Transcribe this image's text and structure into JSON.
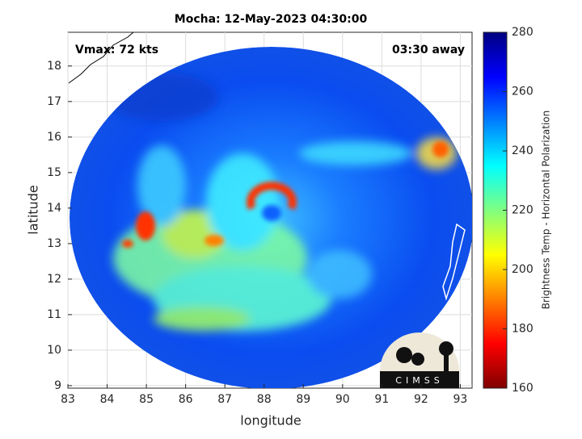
{
  "title": "Mocha: 12-May-2023 04:30:00",
  "annotations": {
    "vmax": "Vmax: 72 kts",
    "away": "03:30 away"
  },
  "axes": {
    "xlabel": "longitude",
    "ylabel": "latitude",
    "xlim": [
      83,
      93.3
    ],
    "ylim": [
      8.93,
      18.95
    ],
    "xticks": [
      83,
      84,
      85,
      86,
      87,
      88,
      89,
      90,
      91,
      92,
      93
    ],
    "yticks": [
      9,
      10,
      11,
      12,
      13,
      14,
      15,
      16,
      17,
      18
    ],
    "grid": true
  },
  "colorbar": {
    "label": "Brightness Temp - Horizontal Polarization",
    "lim": [
      160,
      280
    ],
    "ticks": [
      160,
      180,
      200,
      220,
      240,
      260,
      280
    ],
    "colormap": "jet_r"
  },
  "logo": "CIMSS"
}
